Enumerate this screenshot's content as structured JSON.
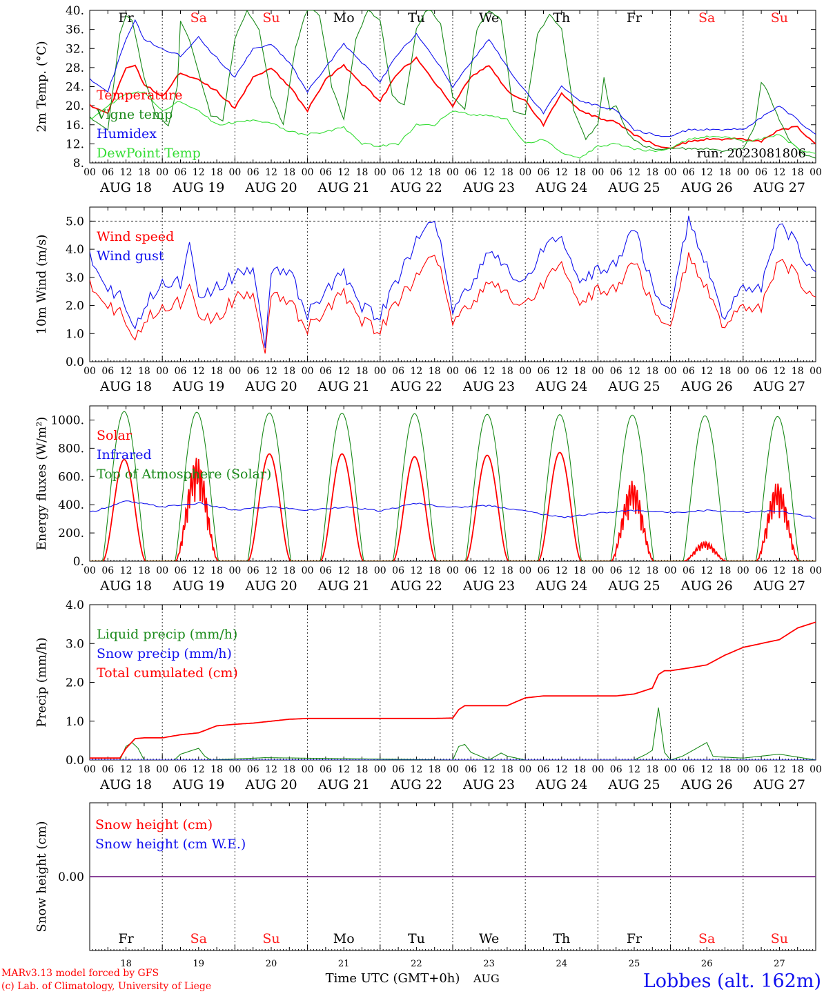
{
  "run_label": "run: 2023081806",
  "hour_ticks": [
    "00",
    "06",
    "12",
    "18"
  ],
  "last_hour_tick": "00",
  "days": [
    {
      "date": "AUG 18",
      "dow": "Fr",
      "dom": "18",
      "weekend": false
    },
    {
      "date": "AUG 19",
      "dow": "Sa",
      "dom": "19",
      "weekend": true
    },
    {
      "date": "AUG 20",
      "dow": "Su",
      "dom": "20",
      "weekend": true
    },
    {
      "date": "AUG 21",
      "dow": "Mo",
      "dom": "21",
      "weekend": false
    },
    {
      "date": "AUG 22",
      "dow": "Tu",
      "dom": "22",
      "weekend": false
    },
    {
      "date": "AUG 23",
      "dow": "We",
      "dom": "23",
      "weekend": false
    },
    {
      "date": "AUG 24",
      "dow": "Th",
      "dom": "24",
      "weekend": false
    },
    {
      "date": "AUG 25",
      "dow": "Fr",
      "dom": "25",
      "weekend": false
    },
    {
      "date": "AUG 26",
      "dow": "Sa",
      "dom": "26",
      "weekend": true
    },
    {
      "date": "AUG 27",
      "dow": "Su",
      "dom": "27",
      "weekend": true
    }
  ],
  "footer": {
    "credit_line1": "MARv3.13 model forced by GFS",
    "credit_line2": "(c) Lab. of Climatology, University of Liege",
    "xlabel": "Time UTC (GMT+0h)",
    "month": "AUG",
    "station": "Lobbes (alt. 162m)"
  },
  "colors": {
    "red": "#ff0000",
    "green": "#1a8a1a",
    "blue": "#1010ee",
    "lightgreen": "#33dd33",
    "purple": "#7a2a8a",
    "weekend": "#ff2020"
  },
  "chart_data": [
    {
      "type": "line",
      "ylabel": "2m Temp. (°C)",
      "ylim": [
        8,
        40
      ],
      "yticks": [
        "8.",
        "12.",
        "16.",
        "20.",
        "24.",
        "28.",
        "32.",
        "36.",
        "40."
      ],
      "x_unit": "hours since AUG 18 00 UTC",
      "series": [
        {
          "name": "Temperature",
          "color": "red",
          "x": [
            0,
            6,
            12,
            15,
            18,
            24,
            30,
            36,
            42,
            48,
            54,
            60,
            66,
            72,
            78,
            84,
            90,
            96,
            102,
            108,
            114,
            120,
            126,
            132,
            138,
            144,
            150,
            156,
            162,
            168,
            174,
            180,
            186,
            192,
            198,
            204,
            210,
            216,
            222,
            228,
            234,
            240
          ],
          "y": [
            20,
            18.5,
            28,
            28.5,
            24.5,
            22,
            27,
            25.5,
            23,
            19.5,
            26,
            28,
            24,
            19,
            25.5,
            28.5,
            24.5,
            21,
            27,
            30,
            25,
            20,
            26,
            28.5,
            23,
            21,
            16,
            22.5,
            19,
            17.5,
            16.5,
            14,
            12,
            11,
            12.5,
            13,
            13,
            13,
            12.5,
            15,
            15.5,
            12
          ]
        },
        {
          "name": "Vigne temp",
          "color": "green",
          "x": [
            0,
            6,
            10,
            12,
            14,
            18,
            22,
            26,
            29,
            30,
            33,
            36,
            40,
            44,
            48,
            52,
            56,
            60,
            64,
            68,
            72,
            76,
            80,
            84,
            88,
            92,
            96,
            100,
            104,
            108,
            112,
            116,
            120,
            124,
            128,
            132,
            136,
            140,
            144,
            148,
            152,
            156,
            160,
            164,
            168,
            170,
            172,
            174,
            178,
            182,
            186,
            190,
            194,
            198,
            204,
            210,
            216,
            220,
            222,
            224,
            228,
            232,
            236,
            240
          ],
          "y": [
            17.5,
            15,
            35,
            39,
            38,
            26,
            18,
            16,
            24,
            38,
            34,
            27,
            18,
            17,
            34,
            40,
            36,
            22,
            16,
            32,
            41,
            39,
            24,
            17,
            34,
            40,
            38,
            22,
            20,
            36,
            41,
            37,
            22,
            19,
            36,
            40,
            38,
            19,
            18,
            35,
            39,
            36,
            19,
            13,
            16,
            26,
            19,
            20,
            14,
            12,
            11,
            11,
            11,
            11,
            11,
            10.5,
            11,
            16,
            25,
            23,
            17,
            12,
            10,
            9
          ]
        },
        {
          "name": "Humidex",
          "color": "blue",
          "x": [
            0,
            6,
            12,
            15,
            18,
            24,
            30,
            36,
            39,
            42,
            48,
            54,
            60,
            66,
            72,
            78,
            84,
            90,
            96,
            102,
            108,
            114,
            120,
            126,
            132,
            138,
            144,
            150,
            156,
            162,
            168,
            174,
            180,
            186,
            192,
            198,
            204,
            210,
            216,
            222,
            228,
            234,
            240
          ],
          "y": [
            25.5,
            23,
            34,
            38,
            34,
            32,
            30.5,
            34.5,
            32,
            30,
            26,
            32,
            33,
            29,
            23,
            28,
            33,
            29,
            25,
            31,
            35,
            30,
            24,
            29,
            34,
            28,
            23,
            18.5,
            24,
            21,
            20,
            19,
            15,
            14,
            13.5,
            15,
            15,
            15,
            15,
            17.5,
            20,
            17,
            14
          ]
        },
        {
          "name": "DewPoint Temp",
          "color": "lightgreen",
          "x": [
            0,
            6,
            12,
            18,
            24,
            30,
            36,
            42,
            48,
            54,
            60,
            66,
            72,
            78,
            84,
            90,
            96,
            102,
            108,
            114,
            120,
            126,
            132,
            138,
            144,
            150,
            156,
            162,
            168,
            174,
            180,
            186,
            192,
            198,
            204,
            210,
            216,
            222,
            228,
            234,
            240
          ],
          "y": [
            17,
            20,
            22.5,
            23,
            19,
            21,
            19,
            16,
            16.5,
            17,
            16.5,
            14.5,
            14,
            14.5,
            15.5,
            12,
            11.5,
            12,
            16,
            16,
            19,
            18,
            18,
            17,
            12,
            13,
            10,
            9,
            11.5,
            12,
            11,
            10.5,
            11,
            13,
            13.5,
            13.5,
            12.5,
            13,
            14,
            11,
            10
          ]
        }
      ]
    },
    {
      "type": "line",
      "ylabel": "10m Wind (m/s)",
      "ylim": [
        0,
        5.5
      ],
      "yticks": [
        "0.0",
        "1.0",
        "2.0",
        "3.0",
        "4.0",
        "5.0"
      ],
      "ref_line": 5.0,
      "series": [
        {
          "name": "Wind speed",
          "color": "red",
          "x": [
            0,
            6,
            10,
            15,
            18,
            24,
            30,
            33,
            36,
            42,
            48,
            54,
            57,
            58,
            60,
            66,
            72,
            78,
            84,
            90,
            96,
            102,
            108,
            114,
            120,
            126,
            132,
            138,
            144,
            150,
            156,
            162,
            168,
            174,
            180,
            186,
            192,
            198,
            204,
            210,
            216,
            222,
            228,
            234,
            240
          ],
          "y": [
            2.7,
            2.0,
            1.8,
            0.8,
            1.5,
            2.0,
            2.1,
            3.0,
            1.6,
            1.5,
            2.3,
            2.4,
            1.0,
            0.4,
            2.5,
            2.1,
            1.2,
            1.8,
            2.5,
            1.4,
            1.1,
            2.2,
            3.0,
            4.0,
            1.5,
            1.9,
            2.9,
            2.3,
            2.0,
            2.8,
            3.4,
            2.0,
            2.6,
            2.5,
            3.7,
            2.0,
            1.2,
            3.8,
            2.6,
            1.2,
            2.0,
            1.9,
            3.7,
            3.0,
            2.3
          ]
        },
        {
          "name": "Wind gust",
          "color": "blue",
          "x": [
            0,
            6,
            10,
            15,
            18,
            24,
            30,
            33,
            36,
            42,
            48,
            54,
            57,
            58,
            60,
            66,
            72,
            78,
            84,
            90,
            96,
            102,
            108,
            114,
            120,
            126,
            132,
            138,
            144,
            150,
            156,
            162,
            168,
            174,
            180,
            186,
            192,
            198,
            204,
            210,
            216,
            222,
            228,
            234,
            240
          ],
          "y": [
            3.7,
            2.6,
            2.4,
            1.2,
            2.0,
            2.9,
            2.8,
            4.5,
            2.3,
            2.6,
            3.1,
            3.3,
            1.5,
            0.6,
            3.3,
            3.2,
            1.7,
            2.5,
            3.2,
            1.9,
            1.6,
            3.0,
            4.3,
            5.2,
            1.9,
            2.6,
            4.0,
            3.2,
            2.8,
            4.1,
            4.3,
            2.8,
            3.3,
            3.4,
            4.9,
            2.7,
            1.8,
            5.1,
            3.4,
            1.5,
            2.7,
            2.6,
            5.0,
            4.1,
            3.2
          ]
        }
      ]
    },
    {
      "type": "line",
      "ylabel": "Energy fluxes (W/m²)",
      "ylim": [
        0,
        1100
      ],
      "yticks": [
        "0.",
        "200.",
        "400.",
        "600.",
        "800.",
        "1000."
      ],
      "series": [
        {
          "name": "Solar",
          "color": "red",
          "peaks": [
            720,
            740,
            760,
            760,
            740,
            750,
            770,
            570,
            140,
            560
          ]
        },
        {
          "name": "Infrared",
          "color": "blue",
          "x": [
            0,
            12,
            24,
            36,
            48,
            54,
            60,
            72,
            84,
            96,
            108,
            120,
            132,
            144,
            156,
            168,
            180,
            192,
            204,
            216,
            228,
            240
          ],
          "y": [
            345,
            425,
            385,
            410,
            360,
            375,
            385,
            360,
            385,
            355,
            410,
            380,
            395,
            355,
            310,
            340,
            360,
            345,
            360,
            350,
            355,
            305
          ]
        },
        {
          "name": "Top of Atmosphere (Solar)",
          "color": "green",
          "peaks": [
            1060,
            1055,
            1050,
            1048,
            1045,
            1040,
            1038,
            1035,
            1030,
            1025
          ]
        }
      ]
    },
    {
      "type": "line",
      "ylabel": "Precip (mm/h)",
      "ylim": [
        0,
        4
      ],
      "yticks": [
        "0.0",
        "1.0",
        "2.0",
        "3.0",
        "4.0"
      ],
      "series": [
        {
          "name": "Liquid precip (mm/h)",
          "color": "green",
          "x": [
            0,
            10,
            12,
            14,
            16,
            18,
            28,
            30,
            36,
            38,
            40,
            58,
            120,
            122,
            124,
            126,
            132,
            136,
            138,
            144,
            180,
            184,
            186,
            188,
            190,
            192,
            196,
            204,
            206,
            208,
            216,
            228,
            232,
            240
          ],
          "y": [
            0,
            0,
            0.35,
            0.45,
            0.3,
            0,
            0,
            0.15,
            0.3,
            0.1,
            0,
            0.06,
            0,
            0.35,
            0.4,
            0.2,
            0,
            0.18,
            0.1,
            0,
            0,
            0.15,
            0.25,
            1.35,
            0.2,
            0,
            0.1,
            0.45,
            0.1,
            0.08,
            0.05,
            0.15,
            0.1,
            0
          ]
        },
        {
          "name": "Snow precip (mm/h)",
          "color": "blue",
          "x": [
            0,
            240
          ],
          "y": [
            0,
            0
          ]
        },
        {
          "name": "Total cumulated (cm)",
          "color": "red",
          "x": [
            0,
            5,
            10,
            12,
            15,
            18,
            24,
            30,
            36,
            42,
            48,
            54,
            60,
            66,
            72,
            84,
            96,
            108,
            114,
            120,
            122,
            124,
            126,
            132,
            138,
            144,
            150,
            156,
            168,
            174,
            180,
            186,
            188,
            190,
            192,
            198,
            204,
            210,
            216,
            222,
            228,
            234,
            240
          ],
          "y": [
            0.05,
            0.05,
            0.05,
            0.3,
            0.55,
            0.57,
            0.57,
            0.65,
            0.7,
            0.88,
            0.92,
            0.95,
            1.0,
            1.05,
            1.07,
            1.07,
            1.07,
            1.07,
            1.07,
            1.08,
            1.3,
            1.4,
            1.4,
            1.4,
            1.4,
            1.6,
            1.65,
            1.65,
            1.65,
            1.65,
            1.7,
            1.85,
            2.2,
            2.3,
            2.3,
            2.37,
            2.45,
            2.7,
            2.9,
            3.0,
            3.1,
            3.4,
            3.55
          ]
        }
      ]
    },
    {
      "type": "line",
      "ylabel": "Snow height (cm)",
      "ylim": [
        -1,
        1
      ],
      "yticks": [
        "0.00"
      ],
      "series": [
        {
          "name": "Snow height (cm)",
          "color": "red",
          "x": [
            0,
            240
          ],
          "y": [
            0,
            0
          ]
        },
        {
          "name": "Snow height (cm W.E.)",
          "color": "blue",
          "x": [
            0,
            240
          ],
          "y": [
            0,
            0
          ]
        }
      ]
    }
  ]
}
